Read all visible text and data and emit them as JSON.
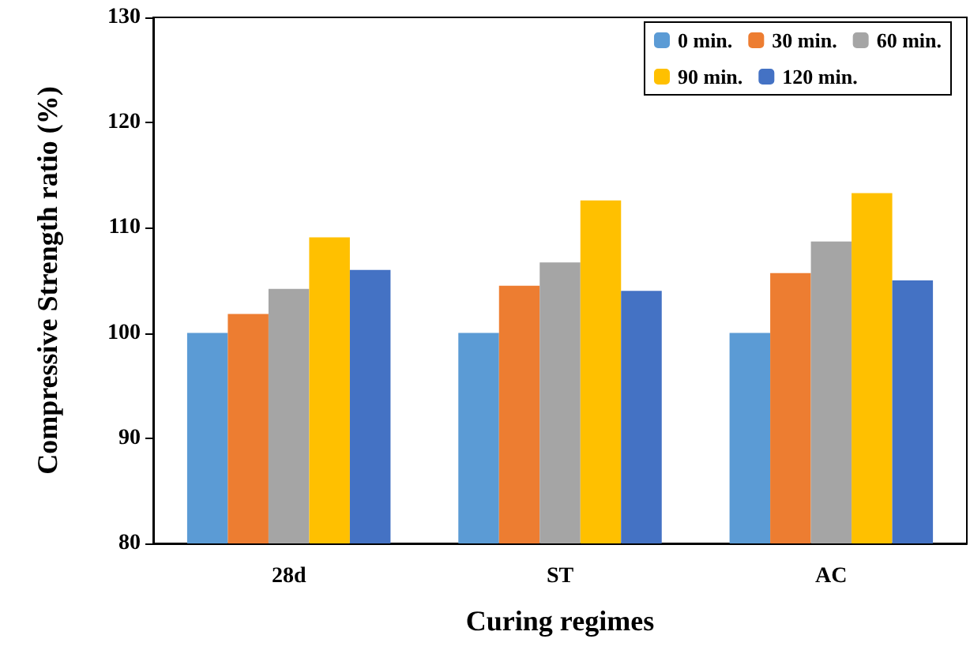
{
  "chart_data": {
    "type": "bar",
    "xlabel": "Curing regimes",
    "ylabel": "Compressive Strength ratio (%)",
    "categories": [
      "28d",
      "ST",
      "AC"
    ],
    "series": [
      {
        "name": "0 min.",
        "color": "#5b9bd5",
        "values": [
          100,
          100,
          100
        ]
      },
      {
        "name": "30 min.",
        "color": "#ed7d31",
        "values": [
          101.8,
          104.5,
          105.7
        ]
      },
      {
        "name": "60 min.",
        "color": "#a5a5a5",
        "values": [
          104.2,
          106.7,
          108.7
        ]
      },
      {
        "name": "90 min.",
        "color": "#ffc000",
        "values": [
          109.1,
          112.6,
          113.3
        ]
      },
      {
        "name": "120 min.",
        "color": "#4472c4",
        "values": [
          106.0,
          104.0,
          105.0
        ]
      }
    ],
    "ylim": [
      80,
      130
    ],
    "yticks": [
      80,
      90,
      100,
      110,
      120,
      130
    ],
    "grid": false,
    "legend": "top right"
  }
}
